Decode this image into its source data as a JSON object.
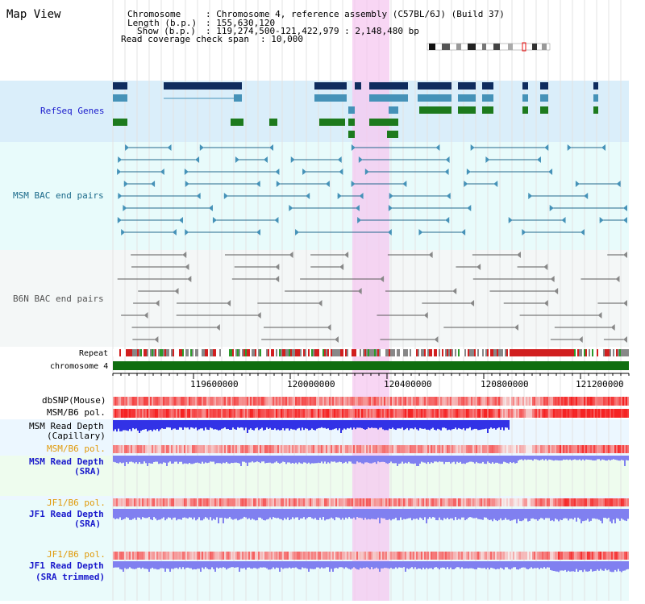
{
  "view_title": "Map View",
  "info": {
    "chromosome_key": "Chromosome",
    "chromosome_val": ": Chromosome 4, reference assembly (C57BL/6J) (Build 37)",
    "length_key": "Length (b.p.)",
    "length_val": ": 155,630,120",
    "show_key": "Show (b.p.)",
    "show_val": ": 119,274,500-121,422,979 : 2,148,480 bp",
    "coverage_key": "Read coverage check span",
    "coverage_val": ": 10,000"
  },
  "tracks": {
    "refseq": "RefSeq Genes",
    "msm_bac": "MSM BAC end pairs",
    "b6n_bac": "B6N BAC end pairs",
    "repeat": "Repeat",
    "chromosome": "chromosome 4",
    "dbsnp": "dbSNP(Mouse)",
    "msm_b6_pol_1": "MSM/B6 pol.",
    "msm_depth_cap_1": "MSM Read Depth",
    "msm_depth_cap_2": "(Capillary)",
    "msm_b6_pol_2": "MSM/B6 pol.",
    "msm_depth_sra_1": "MSM Read Depth",
    "msm_depth_sra_2": "(SRA)",
    "jf1_pol_1": "JF1/B6 pol.",
    "jf1_depth_sra_1": "JF1 Read Depth",
    "jf1_depth_sra_2": "(SRA)",
    "jf1_pol_2": "JF1/B6 pol.",
    "jf1_depth_trim_1": "JF1 Read Depth",
    "jf1_depth_trim_2": "(SRA trimmed)"
  },
  "axis_ticks": [
    "119600000",
    "120000000",
    "120400000",
    "120800000",
    "121200000"
  ],
  "colors": {
    "refseq_bg": "#daeefa",
    "bac_bg": "#e8fbfb",
    "highlight": "#f6d4f2",
    "navy": "#0f2c5e",
    "steel": "#4592b8",
    "green": "#1d7a1d",
    "bac_line": "#23688e",
    "b6n_line": "#5a5a5a",
    "repeat_red": "#d11f1f",
    "chromosome_green": "#0f6e0f",
    "depth_blue": "#3232e6",
    "depth_light": "#8080f0",
    "label_blue": "#1a1acc",
    "label_orange": "#e09a0a",
    "label_teal": "#1b6a8a"
  }
}
